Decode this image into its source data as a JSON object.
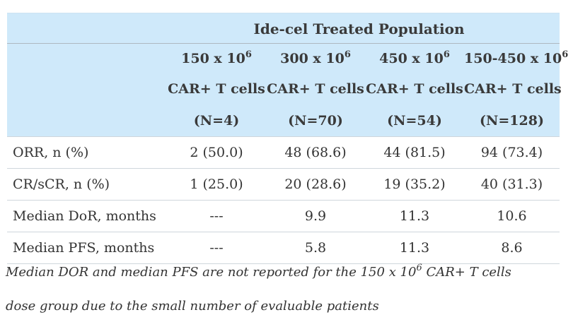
{
  "table": {
    "group_header": "Ide-cel Treated Population",
    "columns": [
      {
        "dose": "150 x 10",
        "exp": "6",
        "unit": "CAR+ T cells",
        "n": "(N=4)"
      },
      {
        "dose": "300 x 10",
        "exp": "6",
        "unit": "CAR+ T cells",
        "n": "(N=70)"
      },
      {
        "dose": "450 x 10",
        "exp": "6",
        "unit": "CAR+ T cells",
        "n": "(N=54)"
      },
      {
        "dose": "150-450 x 10",
        "exp": "6",
        "unit": "CAR+ T cells",
        "n": "(N=128)"
      }
    ],
    "rows": [
      {
        "label": "ORR, n (%)",
        "values": [
          "2 (50.0)",
          "48 (68.6)",
          "44 (81.5)",
          "94 (73.4)"
        ]
      },
      {
        "label": "CR/sCR, n (%)",
        "values": [
          "1 (25.0)",
          "20 (28.6)",
          "19 (35.2)",
          "40 (31.3)"
        ]
      },
      {
        "label": "Median DoR, months",
        "values": [
          "---",
          "9.9",
          "11.3",
          "10.6"
        ]
      },
      {
        "label": "Median PFS, months",
        "values": [
          "---",
          "5.8",
          "11.3",
          "8.6"
        ]
      }
    ]
  },
  "footnote": {
    "line1_pre": "Median DOR and median PFS are not reported for the 150 x 10",
    "line1_exp": "6",
    "line1_post": " CAR+ T cells",
    "line2": "dose group due to the small number of evaluable patients"
  }
}
